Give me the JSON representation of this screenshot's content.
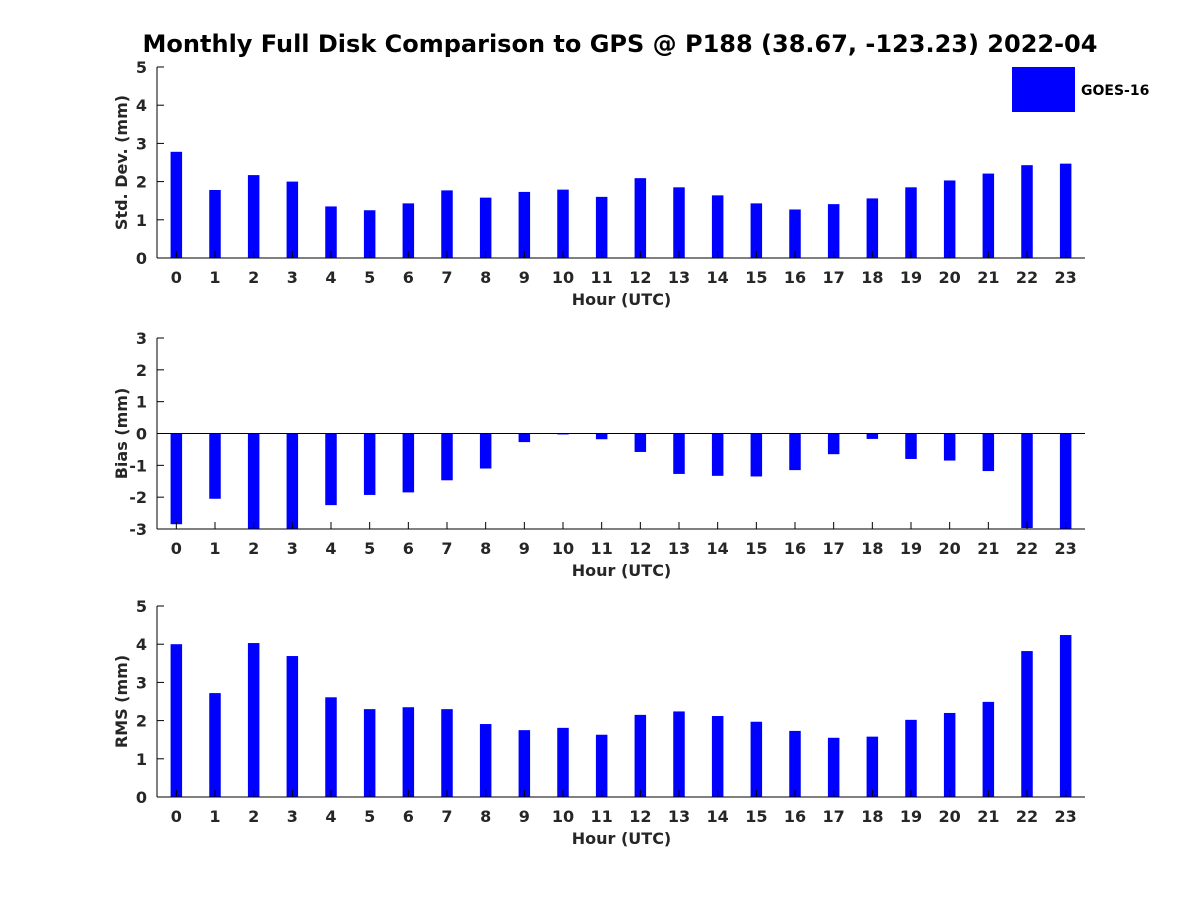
{
  "figure": {
    "title": "Monthly Full Disk Comparison to GPS @ P188 (38.67, -123.23) 2022-04",
    "legend": {
      "label": "GOES-16",
      "color": "#0000ff",
      "placement": "top-right"
    }
  },
  "chart_data": [
    {
      "type": "bar",
      "categories": [
        "0",
        "1",
        "2",
        "3",
        "4",
        "5",
        "6",
        "7",
        "8",
        "9",
        "10",
        "11",
        "12",
        "13",
        "14",
        "15",
        "16",
        "17",
        "18",
        "19",
        "20",
        "21",
        "22",
        "23"
      ],
      "series": [
        {
          "name": "GOES-16",
          "color": "#0000ff",
          "values": [
            2.78,
            1.78,
            2.17,
            2.0,
            1.35,
            1.25,
            1.43,
            1.77,
            1.58,
            1.73,
            1.79,
            1.6,
            2.09,
            1.85,
            1.64,
            1.43,
            1.27,
            1.41,
            1.56,
            1.85,
            2.03,
            2.21,
            2.43,
            2.47
          ]
        }
      ],
      "xlabel": "Hour (UTC)",
      "ylabel": "Std. Dev. (mm)",
      "ylim": [
        0,
        5
      ],
      "yticks": [
        0,
        1,
        2,
        3,
        4,
        5
      ],
      "grid": false
    },
    {
      "type": "bar",
      "categories": [
        "0",
        "1",
        "2",
        "3",
        "4",
        "5",
        "6",
        "7",
        "8",
        "9",
        "10",
        "11",
        "12",
        "13",
        "14",
        "15",
        "16",
        "17",
        "18",
        "19",
        "20",
        "21",
        "22",
        "23"
      ],
      "series": [
        {
          "name": "GOES-16",
          "color": "#0000ff",
          "values": [
            -2.85,
            -2.05,
            -3.0,
            -3.0,
            -2.25,
            -1.93,
            -1.85,
            -1.47,
            -1.1,
            -0.27,
            -0.03,
            -0.18,
            -0.58,
            -1.27,
            -1.33,
            -1.35,
            -1.15,
            -0.65,
            -0.17,
            -0.8,
            -0.85,
            -1.18,
            -2.97,
            -3.0
          ]
        }
      ],
      "xlabel": "Hour (UTC)",
      "ylabel": "Bias (mm)",
      "ylim": [
        -3,
        3
      ],
      "yticks": [
        -3,
        -2,
        -1,
        0,
        1,
        2,
        3
      ],
      "zero_line": true,
      "grid": false
    },
    {
      "type": "bar",
      "categories": [
        "0",
        "1",
        "2",
        "3",
        "4",
        "5",
        "6",
        "7",
        "8",
        "9",
        "10",
        "11",
        "12",
        "13",
        "14",
        "15",
        "16",
        "17",
        "18",
        "19",
        "20",
        "21",
        "22",
        "23"
      ],
      "series": [
        {
          "name": "GOES-16",
          "color": "#0000ff",
          "values": [
            4.0,
            2.72,
            4.03,
            3.69,
            2.61,
            2.3,
            2.35,
            2.3,
            1.91,
            1.75,
            1.81,
            1.63,
            2.15,
            2.24,
            2.12,
            1.97,
            1.73,
            1.55,
            1.58,
            2.02,
            2.2,
            2.49,
            3.82,
            4.24
          ]
        }
      ],
      "xlabel": "Hour (UTC)",
      "ylabel": "RMS (mm)",
      "ylim": [
        0,
        5
      ],
      "yticks": [
        0,
        1,
        2,
        3,
        4,
        5
      ],
      "grid": false
    }
  ]
}
